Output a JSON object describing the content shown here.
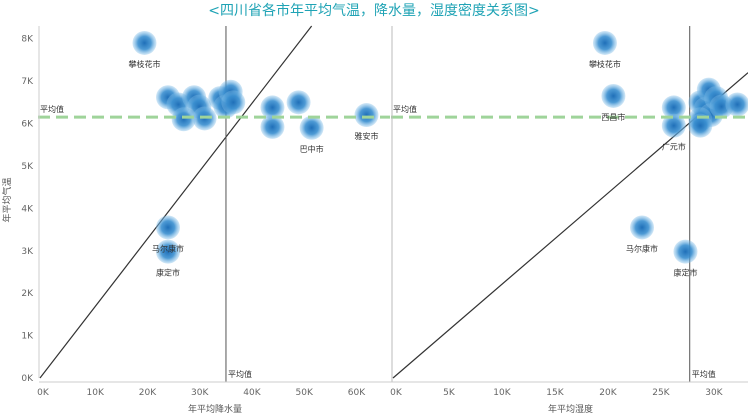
{
  "title": "<四川省各市年平均气温，降水量，湿度密度关系图>",
  "colors": {
    "title": "#1fa3b5",
    "bubble": "#2f8fd3",
    "avg_line": "#9fd49a",
    "ref_line": "#555555",
    "trend": "#333333"
  },
  "chart_data": [
    {
      "type": "scatter",
      "ylabel": "年平均气温",
      "xlabel": "年平均降水量",
      "xlim": [
        0,
        67000
      ],
      "ylim": [
        0,
        8300
      ],
      "x_ticks": [
        "0K",
        "10K",
        "20K",
        "30K",
        "40K",
        "50K",
        "60K"
      ],
      "y_ticks": [
        "0K",
        "1K",
        "2K",
        "3K",
        "4K",
        "5K",
        "6K",
        "7K",
        "8K"
      ],
      "avg_y": 6150,
      "avg_y_label": "平均值",
      "avg_x": 35600,
      "avg_x_label": "平均值",
      "trend": [
        [
          0,
          0
        ],
        [
          52000,
          8300
        ]
      ],
      "points": [
        {
          "x": 20000,
          "y": 7900,
          "label": "攀枝花市"
        },
        {
          "x": 24500,
          "y": 6620,
          "label": ""
        },
        {
          "x": 26500,
          "y": 6450,
          "label": ""
        },
        {
          "x": 27500,
          "y": 6100,
          "label": ""
        },
        {
          "x": 29500,
          "y": 6620,
          "label": ""
        },
        {
          "x": 30500,
          "y": 6400,
          "label": ""
        },
        {
          "x": 31500,
          "y": 6120,
          "label": ""
        },
        {
          "x": 34500,
          "y": 6600,
          "label": ""
        },
        {
          "x": 35500,
          "y": 6400,
          "label": ""
        },
        {
          "x": 36500,
          "y": 6750,
          "label": ""
        },
        {
          "x": 37000,
          "y": 6500,
          "label": ""
        },
        {
          "x": 44500,
          "y": 6380,
          "label": ""
        },
        {
          "x": 44500,
          "y": 5920,
          "label": ""
        },
        {
          "x": 49500,
          "y": 6500,
          "label": ""
        },
        {
          "x": 52000,
          "y": 5900,
          "label": "巴中市"
        },
        {
          "x": 62500,
          "y": 6200,
          "label": "雅安市"
        },
        {
          "x": 24500,
          "y": 3550,
          "label": "马尔康市"
        },
        {
          "x": 24500,
          "y": 2980,
          "label": "康定市"
        }
      ]
    },
    {
      "type": "scatter",
      "xlabel": "年平均湿度",
      "xlim": [
        0,
        33500
      ],
      "ylim": [
        0,
        8300
      ],
      "x_ticks": [
        "0K",
        "5K",
        "10K",
        "15K",
        "20K",
        "25K",
        "30K"
      ],
      "avg_y": 6150,
      "avg_y_label": "平均值",
      "avg_x": 28000,
      "avg_x_label": "平均值",
      "trend": [
        [
          0,
          0
        ],
        [
          33500,
          7200
        ]
      ],
      "points": [
        {
          "x": 20000,
          "y": 7900,
          "label": "攀枝花市"
        },
        {
          "x": 20800,
          "y": 6650,
          "label": "西昌市"
        },
        {
          "x": 26500,
          "y": 6380,
          "label": ""
        },
        {
          "x": 26500,
          "y": 5950,
          "label": "广元市"
        },
        {
          "x": 29000,
          "y": 6500,
          "label": ""
        },
        {
          "x": 29500,
          "y": 6350,
          "label": ""
        },
        {
          "x": 30000,
          "y": 6200,
          "label": ""
        },
        {
          "x": 29000,
          "y": 6100,
          "label": ""
        },
        {
          "x": 29800,
          "y": 6800,
          "label": ""
        },
        {
          "x": 30500,
          "y": 6600,
          "label": ""
        },
        {
          "x": 31000,
          "y": 6400,
          "label": ""
        },
        {
          "x": 32500,
          "y": 6450,
          "label": ""
        },
        {
          "x": 29000,
          "y": 5950,
          "label": ""
        },
        {
          "x": 23500,
          "y": 3550,
          "label": "马尔康市"
        },
        {
          "x": 27600,
          "y": 2980,
          "label": "康定市"
        }
      ]
    }
  ]
}
